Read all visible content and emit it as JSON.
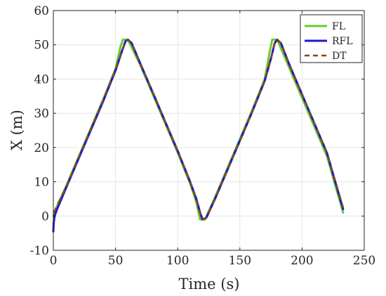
{
  "chart_data": {
    "type": "line",
    "title": "",
    "xlabel": "Time (s)",
    "ylabel": "X (m)",
    "xlim": [
      0,
      250
    ],
    "ylim": [
      -10,
      60
    ],
    "xticks": [
      "0",
      "50",
      "100",
      "150",
      "200",
      "250"
    ],
    "yticks": [
      "-10",
      "0",
      "10",
      "20",
      "30",
      "40",
      "50",
      "60"
    ],
    "grid": true,
    "legend_position": "top-right",
    "series": [
      {
        "name": "FL",
        "color": "#66cc33",
        "style": "solid",
        "x": [
          0,
          1,
          3,
          10,
          20,
          30,
          40,
          50,
          54,
          56,
          60,
          70,
          80,
          90,
          100,
          110,
          115,
          118,
          122,
          130,
          140,
          150,
          160,
          170,
          174,
          176,
          180,
          190,
          200,
          210,
          220,
          233
        ],
        "y": [
          0,
          1.2,
          3,
          8.5,
          17,
          25.5,
          34,
          43,
          49.5,
          51.5,
          51.5,
          44,
          35.5,
          27,
          18.5,
          9.5,
          4,
          -1,
          -1,
          5.5,
          14,
          22.5,
          31,
          40,
          48,
          51.5,
          51.5,
          43,
          34.5,
          26,
          17.5,
          1
        ]
      },
      {
        "name": "RFL",
        "color": "#1a1acc",
        "style": "solid",
        "x": [
          0,
          0.3,
          1,
          3,
          10,
          20,
          30,
          40,
          50,
          55,
          58,
          60,
          63,
          70,
          80,
          90,
          100,
          110,
          115,
          118,
          120,
          123,
          130,
          140,
          150,
          160,
          170,
          175,
          178,
          180,
          183,
          190,
          200,
          210,
          220,
          233
        ],
        "y": [
          -4.5,
          -2,
          0,
          2,
          8,
          16.5,
          25,
          33.5,
          42.5,
          48,
          51,
          51.5,
          50.5,
          44.5,
          36,
          27.5,
          19,
          10,
          5,
          1,
          -1,
          -0.5,
          5,
          13.5,
          22,
          30.5,
          39.5,
          46,
          50.5,
          51.5,
          50.5,
          44,
          35.5,
          27,
          18.5,
          2
        ]
      },
      {
        "name": "DT",
        "color": "#8b4513",
        "style": "dashed",
        "x": [
          0,
          1,
          3,
          10,
          20,
          30,
          40,
          50,
          55,
          58,
          60,
          63,
          70,
          80,
          90,
          100,
          110,
          115,
          118,
          120,
          123,
          130,
          140,
          150,
          160,
          170,
          175,
          178,
          180,
          183,
          190,
          200,
          210,
          220,
          233
        ],
        "y": [
          1,
          1.5,
          3,
          8.2,
          16.8,
          25.3,
          33.8,
          42.8,
          48.2,
          51,
          51.5,
          50.5,
          44.5,
          36,
          27.5,
          19,
          10,
          5,
          1,
          -1,
          -0.5,
          5,
          13.5,
          22,
          30.5,
          39.5,
          46,
          50.5,
          51.5,
          50.5,
          44,
          35.5,
          27,
          18.5,
          2.5
        ]
      }
    ]
  }
}
